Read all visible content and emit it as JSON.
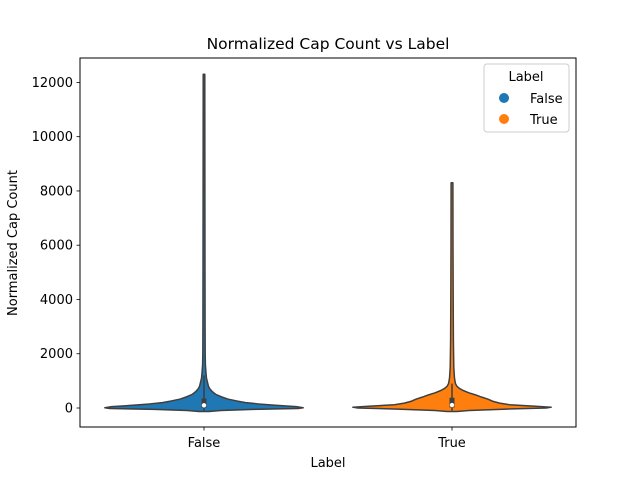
{
  "chart_data": {
    "type": "violin",
    "title": "Normalized Cap Count vs Label",
    "xlabel": "Label",
    "ylabel": "Normalized Cap Count",
    "categories": [
      "False",
      "True"
    ],
    "ylim": [
      -700,
      12900
    ],
    "yticks": [
      0,
      2000,
      4000,
      6000,
      8000,
      10000,
      12000
    ],
    "grid": false,
    "legend": {
      "title": "Label",
      "placement": "top-right",
      "entries": [
        {
          "label": "False",
          "color": "#1f77b4"
        },
        {
          "label": "True",
          "color": "#ff7f0e"
        }
      ]
    },
    "series": [
      {
        "category": "False",
        "color": "#1f77b4",
        "min": -130,
        "max": 12300,
        "q1": 20,
        "median": 100,
        "q3": 350,
        "whisker_low": -100,
        "whisker_high": 1200,
        "density": [
          [
            -130,
            0.05
          ],
          [
            -90,
            0.17
          ],
          [
            -50,
            0.5
          ],
          [
            -20,
            0.95
          ],
          [
            10,
            1.0
          ],
          [
            50,
            0.93
          ],
          [
            100,
            0.72
          ],
          [
            150,
            0.55
          ],
          [
            200,
            0.42
          ],
          [
            260,
            0.33
          ],
          [
            330,
            0.24
          ],
          [
            420,
            0.17
          ],
          [
            500,
            0.12
          ],
          [
            600,
            0.085
          ],
          [
            700,
            0.06
          ],
          [
            800,
            0.045
          ],
          [
            950,
            0.035
          ],
          [
            1100,
            0.025
          ],
          [
            1300,
            0.02
          ],
          [
            1600,
            0.014
          ],
          [
            2000,
            0.012
          ],
          [
            3000,
            0.011
          ],
          [
            5000,
            0.01
          ],
          [
            8000,
            0.009
          ],
          [
            12300,
            0.008
          ]
        ]
      },
      {
        "category": "True",
        "color": "#ff7f0e",
        "min": -130,
        "max": 8300,
        "q1": 20,
        "median": 110,
        "q3": 380,
        "whisker_low": -100,
        "whisker_high": 900,
        "density": [
          [
            -130,
            0.05
          ],
          [
            -90,
            0.17
          ],
          [
            -40,
            0.55
          ],
          [
            0,
            0.95
          ],
          [
            30,
            1.0
          ],
          [
            70,
            0.82
          ],
          [
            120,
            0.58
          ],
          [
            180,
            0.48
          ],
          [
            250,
            0.41
          ],
          [
            330,
            0.36
          ],
          [
            400,
            0.3
          ],
          [
            480,
            0.24
          ],
          [
            560,
            0.17
          ],
          [
            650,
            0.11
          ],
          [
            720,
            0.075
          ],
          [
            800,
            0.05
          ],
          [
            900,
            0.035
          ],
          [
            1100,
            0.025
          ],
          [
            1500,
            0.018
          ],
          [
            2500,
            0.014
          ],
          [
            4000,
            0.012
          ],
          [
            6000,
            0.01
          ],
          [
            8300,
            0.009
          ]
        ]
      }
    ]
  }
}
